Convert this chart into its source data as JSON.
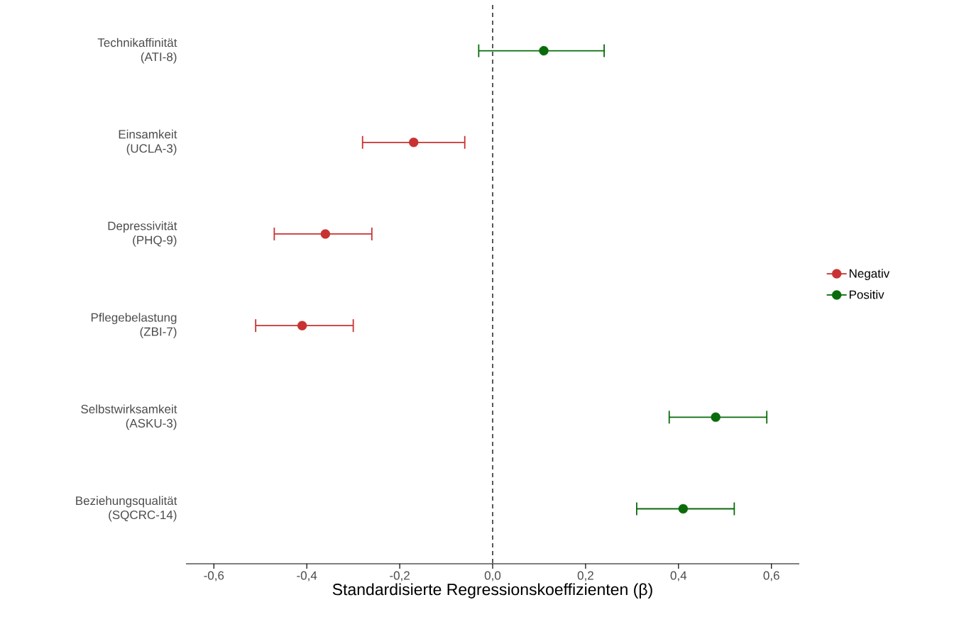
{
  "chart_data": {
    "type": "scatter",
    "orientation": "horizontal",
    "xlabel": "Standardisierte Regressionskoeffizienten (β)",
    "categories": [
      "Technikaffinität (ATI-8)",
      "Einsamkeit (UCLA-3)",
      "Depressivität (PHQ-9)",
      "Pflegebelastung (ZBI-7)",
      "Selbstwirksamkeit (ASKU-3)",
      "Beziehungsqualität (SQCRC-14)"
    ],
    "series": [
      {
        "name": "Negativ",
        "color": "#c83232",
        "values": [
          null,
          -0.17,
          -0.36,
          -0.41,
          null,
          null
        ],
        "errors": [
          null,
          [
            -0.28,
            -0.06
          ],
          [
            -0.47,
            -0.26
          ],
          [
            -0.51,
            -0.3
          ],
          null,
          null
        ]
      },
      {
        "name": "Positiv",
        "color": "#0a6b0a",
        "values": [
          0.11,
          null,
          null,
          null,
          0.48,
          0.41
        ],
        "errors": [
          [
            -0.03,
            0.24
          ],
          null,
          null,
          null,
          [
            0.38,
            0.59
          ],
          [
            0.31,
            0.52
          ]
        ]
      }
    ],
    "xlim": [
      -0.66,
      0.66
    ],
    "xticks": [
      {
        "value": -0.6,
        "label": "-0,6"
      },
      {
        "value": -0.4,
        "label": "-0,4"
      },
      {
        "value": -0.2,
        "label": "-0,2"
      },
      {
        "value": 0,
        "label": "0,0"
      },
      {
        "value": 0.2,
        "label": "0,2"
      },
      {
        "value": 0.4,
        "label": "0,4"
      },
      {
        "value": 0.6,
        "label": "0,6"
      }
    ],
    "ref_lines": [
      {
        "axis": "x",
        "value": 0,
        "color": "#000000",
        "line_style": "dashed"
      }
    ],
    "legend": "right",
    "marker": "circle"
  }
}
